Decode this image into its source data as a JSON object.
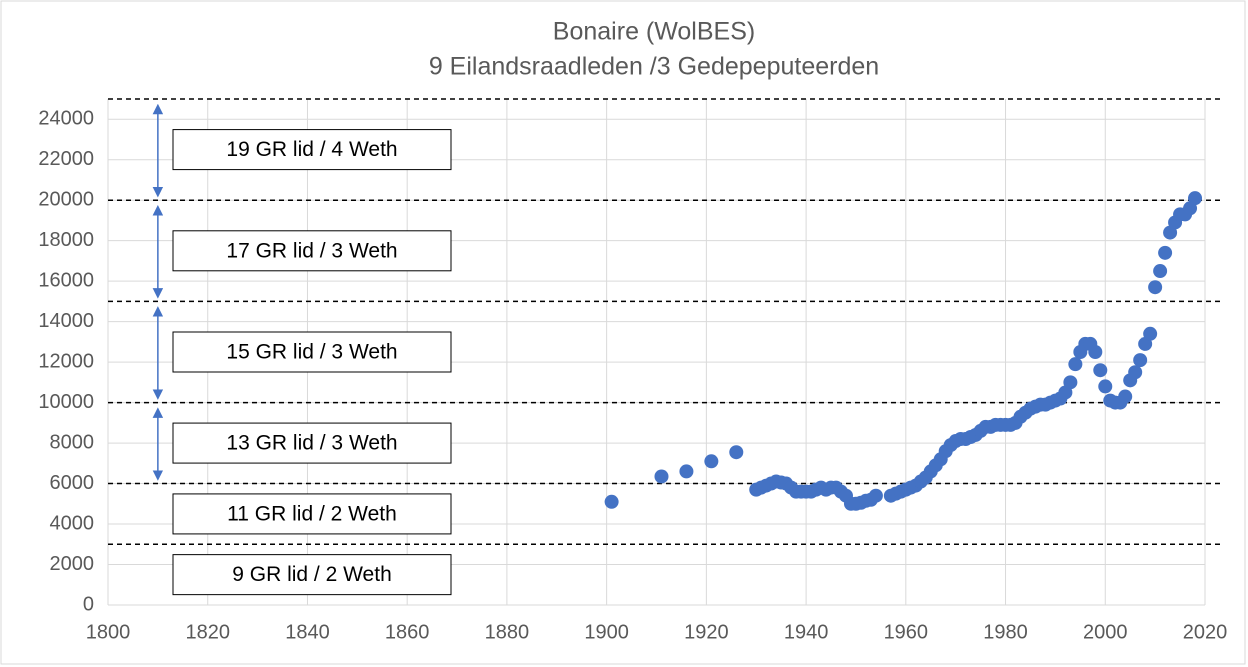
{
  "chart_data": {
    "type": "scatter",
    "title": "Bonaire (WolBES)",
    "subtitle": "9 Eilandsraadleden /3 Gedepeputeerden",
    "xlim": [
      1800,
      2020
    ],
    "xticks": [
      1800,
      1820,
      1840,
      1860,
      1880,
      1900,
      1920,
      1940,
      1960,
      1980,
      2000,
      2020
    ],
    "ylim": [
      0,
      25000
    ],
    "yticks": [
      0,
      2000,
      4000,
      6000,
      8000,
      10000,
      12000,
      14000,
      16000,
      18000,
      20000,
      22000,
      24000
    ],
    "grid": true,
    "threshold_lines": [
      3000,
      6000,
      10000,
      15000,
      20000,
      25000
    ],
    "bands": [
      {
        "label": "19 GR lid / 4 Weth",
        "low": 20000,
        "high": 25000,
        "arrow": true
      },
      {
        "label": "17 GR lid / 3 Weth",
        "low": 15000,
        "high": 20000,
        "arrow": true
      },
      {
        "label": "15 GR lid / 3 Weth",
        "low": 10000,
        "high": 15000,
        "arrow": true
      },
      {
        "label": "13 GR lid / 3 Weth",
        "low": 6000,
        "high": 10000,
        "arrow": true
      },
      {
        "label": "11 GR lid / 2 Weth",
        "low": 3000,
        "high": 6000,
        "arrow": false
      },
      {
        "label": "9 GR lid / 2 Weth",
        "low": 0,
        "high": 3000,
        "arrow": false
      }
    ],
    "arrow_x": 1810,
    "series": [
      {
        "color": "#4472c4",
        "x": [
          1901,
          1911,
          1916,
          1921,
          1926,
          1930,
          1931,
          1932,
          1933,
          1934,
          1935,
          1936,
          1937,
          1938,
          1939,
          1940,
          1941,
          1942,
          1943,
          1944,
          1945,
          1946,
          1947,
          1948,
          1949,
          1950,
          1951,
          1952,
          1953,
          1954,
          1957,
          1958,
          1959,
          1960,
          1961,
          1962,
          1963,
          1964,
          1965,
          1966,
          1967,
          1968,
          1969,
          1970,
          1971,
          1972,
          1973,
          1974,
          1975,
          1976,
          1977,
          1978,
          1979,
          1980,
          1981,
          1982,
          1983,
          1984,
          1985,
          1986,
          1987,
          1988,
          1989,
          1990,
          1991,
          1992,
          1993,
          1994,
          1995,
          1996,
          1997,
          1998,
          1999,
          2000,
          2001,
          2002,
          2003,
          2004,
          2005,
          2006,
          2007,
          2008,
          2009,
          2010,
          2011,
          2012,
          2013,
          2014,
          2015,
          2016,
          2017,
          2018
        ],
        "values": [
          5100,
          6350,
          6600,
          7100,
          7550,
          5700,
          5800,
          5900,
          6000,
          6100,
          6050,
          6000,
          5800,
          5600,
          5600,
          5600,
          5600,
          5700,
          5800,
          5700,
          5800,
          5800,
          5600,
          5400,
          5000,
          5000,
          5050,
          5150,
          5200,
          5400,
          5400,
          5500,
          5600,
          5700,
          5800,
          5900,
          6100,
          6300,
          6600,
          6900,
          7200,
          7600,
          7900,
          8100,
          8200,
          8200,
          8300,
          8400,
          8600,
          8800,
          8800,
          8900,
          8900,
          8900,
          8900,
          9000,
          9300,
          9500,
          9700,
          9800,
          9900,
          9900,
          10000,
          10100,
          10200,
          10500,
          11000,
          11900,
          12500,
          12900,
          12900,
          12500,
          11600,
          10800,
          10100,
          10000,
          10000,
          10300,
          11100,
          11500,
          12100,
          12900,
          13400,
          15700,
          16500,
          17400,
          18400,
          18900,
          19300,
          19300,
          19600,
          20100
        ]
      }
    ]
  }
}
